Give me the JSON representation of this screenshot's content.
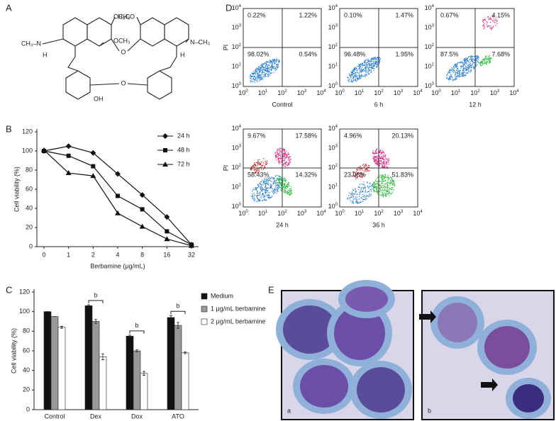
{
  "panel_letters": [
    "A",
    "B",
    "C",
    "D",
    "E"
  ],
  "structure": {
    "labels": [
      "OCH₃",
      "OCH₃",
      "H₃CO",
      "N–CH₃",
      "CH₃–N",
      "H",
      "H",
      "O",
      "O",
      "OH"
    ]
  },
  "chart_data": [
    {
      "type": "line",
      "categories": [
        "0",
        "1",
        "2",
        "4",
        "8",
        "16",
        "32"
      ],
      "series": [
        {
          "name": "24 h",
          "color": "#111",
          "marker": "diamond",
          "values": [
            100,
            105,
            98,
            76,
            54,
            31,
            2
          ]
        },
        {
          "name": "48 h",
          "color": "#111",
          "marker": "square",
          "values": [
            100,
            95,
            84,
            53,
            39,
            16,
            2
          ]
        },
        {
          "name": "72 h",
          "color": "#111",
          "marker": "triangle",
          "values": [
            101,
            77,
            74,
            35,
            21,
            8,
            1
          ]
        }
      ],
      "x_label": "Berbamine (μg/mL)",
      "y_label": "Cell viability (%)",
      "ylim": [
        0,
        120
      ],
      "yticks": [
        0,
        20,
        40,
        60,
        80,
        100,
        120
      ]
    },
    {
      "type": "bar",
      "categories": [
        "Control",
        "Dex",
        "Dox",
        "ATO"
      ],
      "series": [
        {
          "name": "Medium",
          "color": "#111",
          "values": [
            100,
            106,
            75,
            94
          ],
          "errors": [
            0,
            1,
            1,
            2
          ]
        },
        {
          "name": "1 μg/mL berbamine",
          "color": "#999",
          "values": [
            95,
            90,
            60,
            86
          ],
          "errors": [
            0,
            2,
            1,
            3
          ]
        },
        {
          "name": "2 μg/mL berbamine",
          "color": "#fff",
          "values": [
            84,
            54,
            37,
            58
          ],
          "errors": [
            1,
            3,
            2,
            1
          ]
        }
      ],
      "annotations": [
        {
          "text": "b",
          "x": "Dex"
        },
        {
          "text": "b",
          "x": "Dox"
        },
        {
          "text": "b",
          "x": "ATO"
        }
      ],
      "y_label": "Cell viability (%)",
      "ylim": [
        0,
        120
      ],
      "yticks": [
        0,
        20,
        40,
        60,
        80,
        100,
        120
      ]
    }
  ],
  "flow_cytometry": {
    "y_label": "PI",
    "tick_base": "10",
    "tick_exponents": [
      "0",
      "1",
      "2",
      "3",
      "4"
    ],
    "plots": [
      {
        "label": "Control",
        "ul": "0.22%",
        "ur": "1.22%",
        "ll": "98.02%",
        "lr": "0.54%"
      },
      {
        "label": "6 h",
        "ul": "0.10%",
        "ur": "1.47%",
        "ll": "96.48%",
        "lr": "1.95%"
      },
      {
        "label": "12 h",
        "ul": "0.67%",
        "ur": "4.15%",
        "ll": "87.5%",
        "lr": "7.68%"
      },
      {
        "label": "24 h",
        "ul": "9.67%",
        "ur": "17.58%",
        "ll": "58.43%",
        "lr": "14.32%"
      },
      {
        "label": "36 h",
        "ul": "4.96%",
        "ur": "20.13%",
        "ll": "23.08%",
        "lr": "51.83%"
      }
    ]
  },
  "micrographs": {
    "labels": [
      "a",
      "b"
    ]
  }
}
